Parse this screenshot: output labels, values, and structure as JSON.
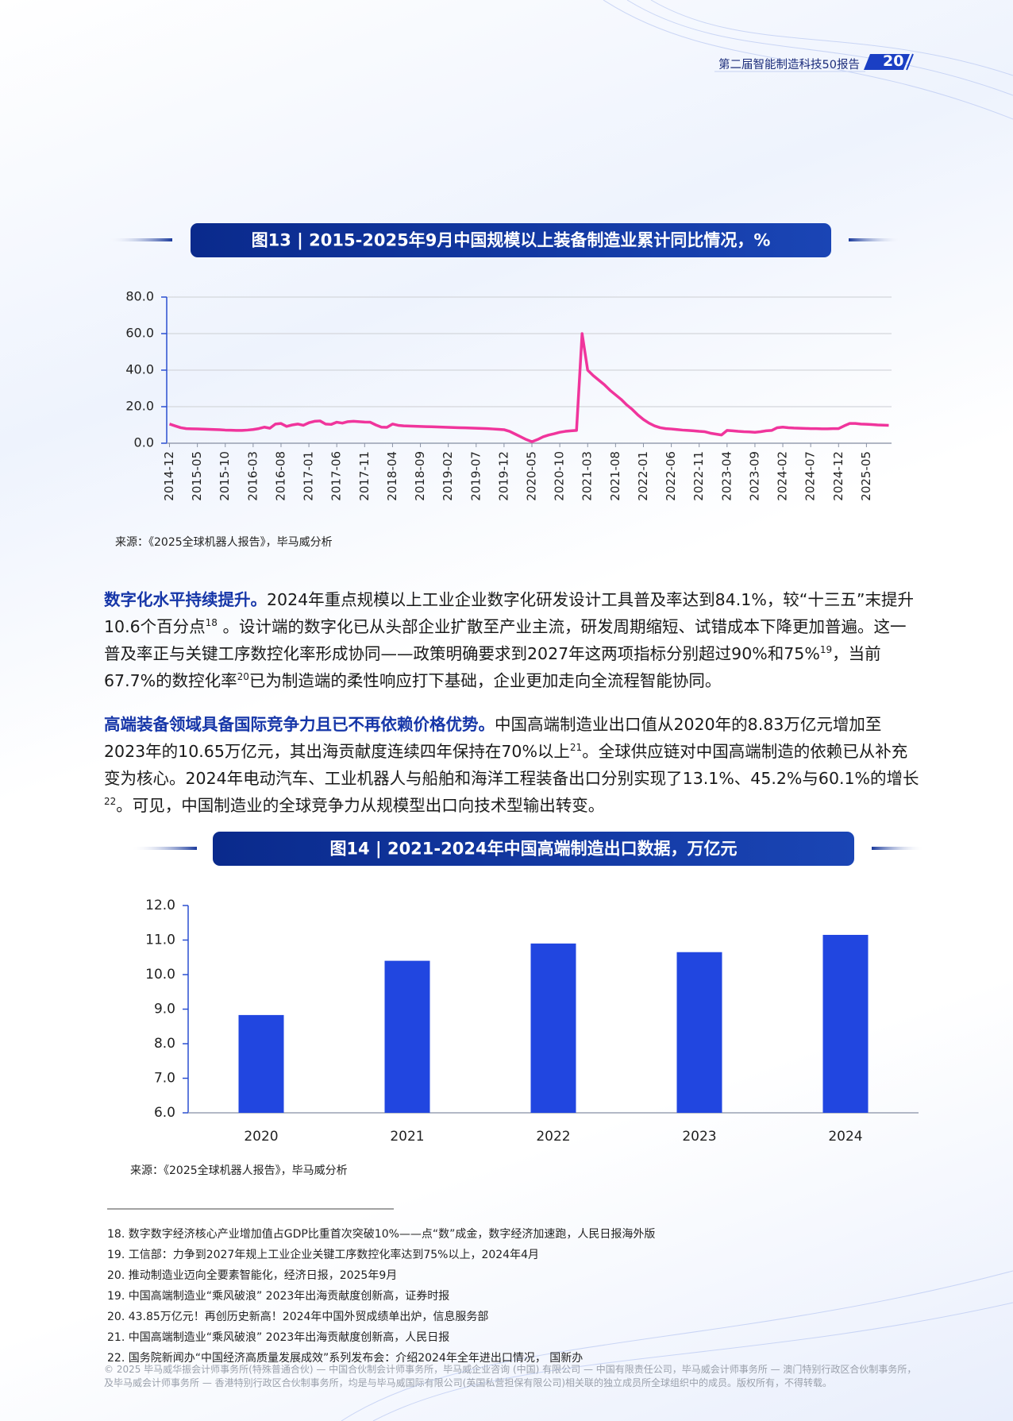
{
  "header": {
    "title": "第二届智能制造科技50报告",
    "page_number": "20"
  },
  "chart_data": [
    {
      "type": "line",
      "title": "图13 | 2015-2025年9月中国规模以上装备制造业累计同比情况，%",
      "categories": [
        "2014-12",
        null,
        null,
        null,
        null,
        "2015-05",
        null,
        null,
        null,
        null,
        "2015-10",
        null,
        null,
        null,
        null,
        "2016-03",
        null,
        null,
        null,
        null,
        "2016-08",
        null,
        null,
        null,
        null,
        "2017-01",
        null,
        null,
        null,
        null,
        "2017-06",
        null,
        null,
        null,
        null,
        "2017-11",
        null,
        null,
        null,
        null,
        "2018-04",
        null,
        null,
        null,
        null,
        "2018-09",
        null,
        null,
        null,
        null,
        "2019-02",
        null,
        null,
        null,
        null,
        "2019-07",
        null,
        null,
        null,
        null,
        "2019-12",
        null,
        null,
        null,
        null,
        "2020-05",
        null,
        null,
        null,
        null,
        "2020-10",
        null,
        null,
        null,
        null,
        "2021-03",
        null,
        null,
        null,
        null,
        "2021-08",
        null,
        null,
        null,
        null,
        "2022-01",
        null,
        null,
        null,
        null,
        "2022-06",
        null,
        null,
        null,
        null,
        "2022-11",
        null,
        null,
        null,
        null,
        "2023-04",
        null,
        null,
        null,
        null,
        "2023-09",
        null,
        null,
        null,
        null,
        "2024-02",
        null,
        null,
        null,
        null,
        "2024-07",
        null,
        null,
        null,
        null,
        "2024-12",
        null,
        null,
        null,
        null,
        "2025-05",
        null,
        null,
        null,
        null
      ],
      "values": [
        10.5,
        9.5,
        8.5,
        8,
        7.9,
        7.8,
        7.7,
        7.6,
        7.5,
        7.4,
        7.2,
        7.1,
        7.0,
        7.0,
        7.2,
        7.5,
        8,
        8.8,
        8.2,
        10.5,
        10.8,
        9.2,
        10,
        10.5,
        9.8,
        11.2,
        12,
        12.2,
        10.5,
        10.3,
        11.5,
        11,
        11.8,
        12,
        11.8,
        11.6,
        11.5,
        10,
        8.8,
        8.7,
        10.5,
        9.8,
        9.5,
        9.4,
        9.3,
        9.2,
        9.1,
        9.0,
        8.9,
        8.8,
        8.7,
        8.6,
        8.5,
        8.4,
        8.3,
        8.2,
        8.1,
        8.0,
        7.8,
        7.6,
        7.4,
        6.5,
        5,
        3.5,
        2,
        0.8,
        2,
        3.5,
        4.5,
        5.2,
        6,
        6.5,
        6.8,
        7,
        60,
        40,
        37,
        34.5,
        32,
        29,
        26.5,
        24,
        21,
        18.5,
        15.5,
        13,
        11,
        9.5,
        8.5,
        8,
        7.8,
        7.5,
        7.2,
        7,
        6.8,
        6.5,
        6.3,
        5.5,
        5,
        4.5,
        7,
        6.8,
        6.5,
        6.3,
        6.2,
        6,
        6.3,
        6.8,
        7,
        8.5,
        8.8,
        8.5,
        8.3,
        8.2,
        8.1,
        8,
        8,
        7.9,
        7.9,
        8,
        8,
        9.5,
        10.8,
        10.8,
        10.5,
        10.4,
        10.2,
        10,
        9.9,
        9.8
      ],
      "color": "#f0359c",
      "ylim": [
        0,
        80
      ],
      "yticks": [
        {
          "value": 0,
          "label": "0.0"
        },
        {
          "value": 20,
          "label": "20.0"
        },
        {
          "value": 40,
          "label": "40.0"
        },
        {
          "value": 60,
          "label": "60.0"
        },
        {
          "value": 80,
          "label": "80.0"
        }
      ],
      "grid": true,
      "source": "来源：《2025全球机器人报告》，毕马威分析"
    },
    {
      "type": "bar",
      "title": "图14 | 2021-2024年中国高端制造出口数据，万亿元",
      "categories": [
        "2020",
        "2021",
        "2022",
        "2023",
        "2024"
      ],
      "values": [
        8.83,
        10.4,
        10.9,
        10.65,
        11.15
      ],
      "color": "#2146e0",
      "ylim": [
        6,
        12
      ],
      "yticks": [
        {
          "value": 6,
          "label": "6.0"
        },
        {
          "value": 7,
          "label": "7.0"
        },
        {
          "value": 8,
          "label": "8.0"
        },
        {
          "value": 9,
          "label": "9.0"
        },
        {
          "value": 10,
          "label": "10.0"
        },
        {
          "value": 11,
          "label": "11.0"
        },
        {
          "value": 12,
          "label": "12.0"
        }
      ],
      "grid": false,
      "source": "来源：《2025全球机器人报告》，毕马威分析"
    }
  ],
  "paragraphs": [
    {
      "segments": [
        {
          "text": "数字化水平持续提升。",
          "style": "bold"
        },
        {
          "text": "2024年重点规模以上工业企业数字化研发设计工具普及率达到84.1%，较“十三五”末提升10.6个百分点"
        },
        {
          "text": "18",
          "style": "sup"
        },
        {
          "text": " 。设计端的数字化已从头部企业扩散至产业主流，研发周期缩短、试错成本下降更加普遍。这一普及率正与关键工序数控化率形成协同——政策明确要求到2027年这两项指标分别超过90%和75%"
        },
        {
          "text": "19",
          "style": "sup"
        },
        {
          "text": "，当前67.7%的数控化率"
        },
        {
          "text": "20",
          "style": "sup"
        },
        {
          "text": "已为制造端的柔性响应打下基础，企业更加走向全流程智能协同。"
        }
      ]
    },
    {
      "segments": [
        {
          "text": "高端装备领域具备国际竞争力且已不再依赖价格优势。",
          "style": "bold"
        },
        {
          "text": "中国高端制造业出口值从2020年的8.83万亿元增加至2023年的10.65万亿元，其出海贡献度连续四年保持在70%以上"
        },
        {
          "text": "21",
          "style": "sup"
        },
        {
          "text": "。全球供应链对中国高端制造的依赖已从补充变为核心。2024年电动汽车、工业机器人与船舶和海洋工程装备出口分别实现了13.1%、45.2%与60.1%的增长"
        },
        {
          "text": "22",
          "style": "sup"
        },
        {
          "text": "。可见，中国制造业的全球竞争力从规模型出口向技术型输出转变。"
        }
      ]
    }
  ],
  "footnotes": [
    "18. 数字数字经济核心产业增加值占GDP比重首次突破10%——点“数”成金，数字经济加速跑，人民日报海外版",
    "19. 工信部：力争到2027年规上工业企业关键工序数控化率达到75%以上，2024年4月",
    "20. 推动制造业迈向全要素智能化，经济日报，2025年9月",
    "19. 中国高端制造业“乘风破浪” 2023年出海贡献度创新高，证券时报",
    "20. 43.85万亿元！再创历史新高！2024年中国外贸成绩单出炉，信息服务部",
    "21. 中国高端制造业“乘风破浪” 2023年出海贡献度创新高，人民日报",
    "22. 国务院新闻办“中国经济高质量发展成效”系列发布会：介绍2024年全年进出口情况， 国新办"
  ],
  "copyright": "© 2025 毕马威华振会计师事务所(特殊普通合伙) — 中国合伙制会计师事务所，毕马威企业咨询 (中国) 有限公司 — 中国有限责任公司，毕马威会计师事务所 — 澳门特别行政区合伙制事务所，及毕马威会计师事务所 — 香港特别行政区合伙制事务所，均是与毕马威国际有限公司(英国私营担保有限公司)相关联的独立成员所全球组织中的成员。版权所有，不得转载。"
}
